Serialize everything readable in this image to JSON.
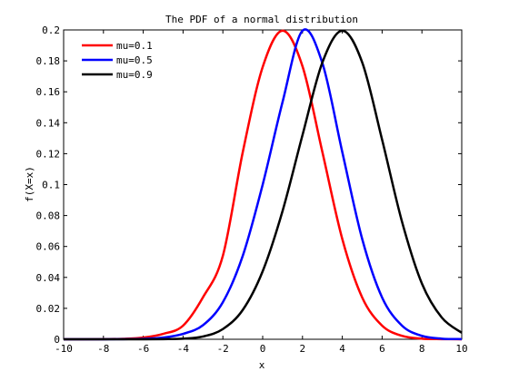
{
  "chart_data": {
    "type": "line",
    "title": "The PDF of a normal distribution",
    "xlabel": "x",
    "ylabel": "f(X=x)",
    "xlim": [
      -10,
      10
    ],
    "ylim": [
      0,
      0.2
    ],
    "x_ticks": [
      "-10",
      "-8",
      "-6",
      "-4",
      "-2",
      "0",
      "2",
      "4",
      "6",
      "8",
      "10"
    ],
    "y_ticks": [
      "0",
      "0.02",
      "0.04",
      "0.06",
      "0.08",
      "0.1",
      "0.12",
      "0.14",
      "0.16",
      "0.18",
      "0.2"
    ],
    "grid": false,
    "legend_position": "top-left",
    "x": [
      -10,
      -9,
      -8,
      -7,
      -6,
      -5,
      -4,
      -3,
      -2,
      -1,
      0,
      1,
      2,
      3,
      4,
      5,
      6,
      7,
      8,
      9,
      10
    ],
    "series": [
      {
        "name": "mu=0.1",
        "color": "#ff0000",
        "values": [
          0.0,
          0.0,
          0.0001,
          0.0003,
          0.0011,
          0.0035,
          0.0088,
          0.0271,
          0.054,
          0.121,
          0.176,
          0.1995,
          0.1765,
          0.121,
          0.0648,
          0.027,
          0.0088,
          0.0022,
          0.0004,
          0.0001,
          0.0
        ]
      },
      {
        "name": "mu=0.5",
        "color": "#0000ff",
        "values": [
          0.0,
          0.0,
          0.0,
          0.0001,
          0.0003,
          0.0011,
          0.0035,
          0.0091,
          0.024,
          0.054,
          0.1,
          0.1535,
          0.1995,
          0.1785,
          0.121,
          0.0648,
          0.027,
          0.0088,
          0.0022,
          0.0004,
          0.0001
        ]
      },
      {
        "name": "mu=0.9",
        "color": "#000000",
        "values": [
          0.0,
          0.0,
          0.0,
          0.0,
          0.0,
          0.0001,
          0.0004,
          0.0018,
          0.0066,
          0.019,
          0.044,
          0.083,
          0.132,
          0.179,
          0.1995,
          0.179,
          0.129,
          0.076,
          0.036,
          0.014,
          0.0042
        ]
      }
    ]
  }
}
